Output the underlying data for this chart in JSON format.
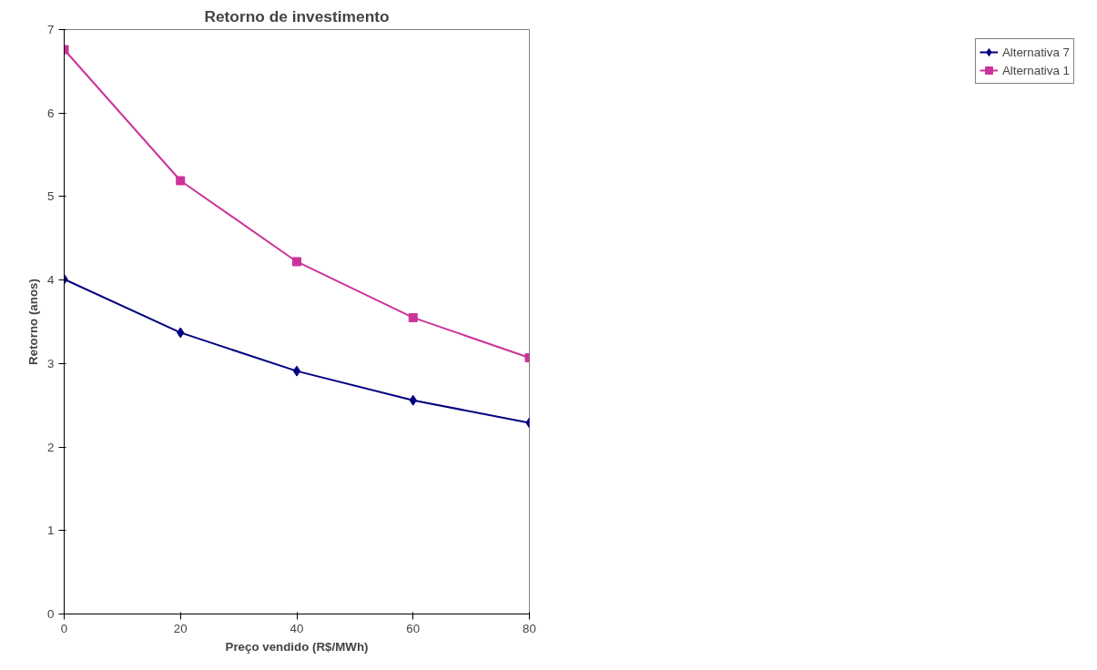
{
  "chart_data": {
    "type": "line",
    "title": "Retorno de investimento",
    "xlabel": "Preço vendido (R$/MWh)",
    "ylabel": "Retorno (anos)",
    "x": [
      0,
      20,
      40,
      60,
      80
    ],
    "series": [
      {
        "name": "Alternativa 7",
        "color": "#000080",
        "marker": "diamond",
        "values": [
          4.01,
          3.37,
          2.91,
          2.56,
          2.29
        ]
      },
      {
        "name": "Alternativa 1",
        "color": "#cc3399",
        "marker": "square",
        "values": [
          6.76,
          5.19,
          4.22,
          3.55,
          3.07
        ]
      }
    ],
    "xlim": [
      0,
      80
    ],
    "ylim": [
      0,
      7
    ],
    "xticks": [
      0,
      20,
      40,
      60,
      80
    ],
    "yticks": [
      0,
      1,
      2,
      3,
      4,
      5,
      6,
      7
    ],
    "grid": false,
    "legend": "right",
    "line_style": "solid"
  }
}
